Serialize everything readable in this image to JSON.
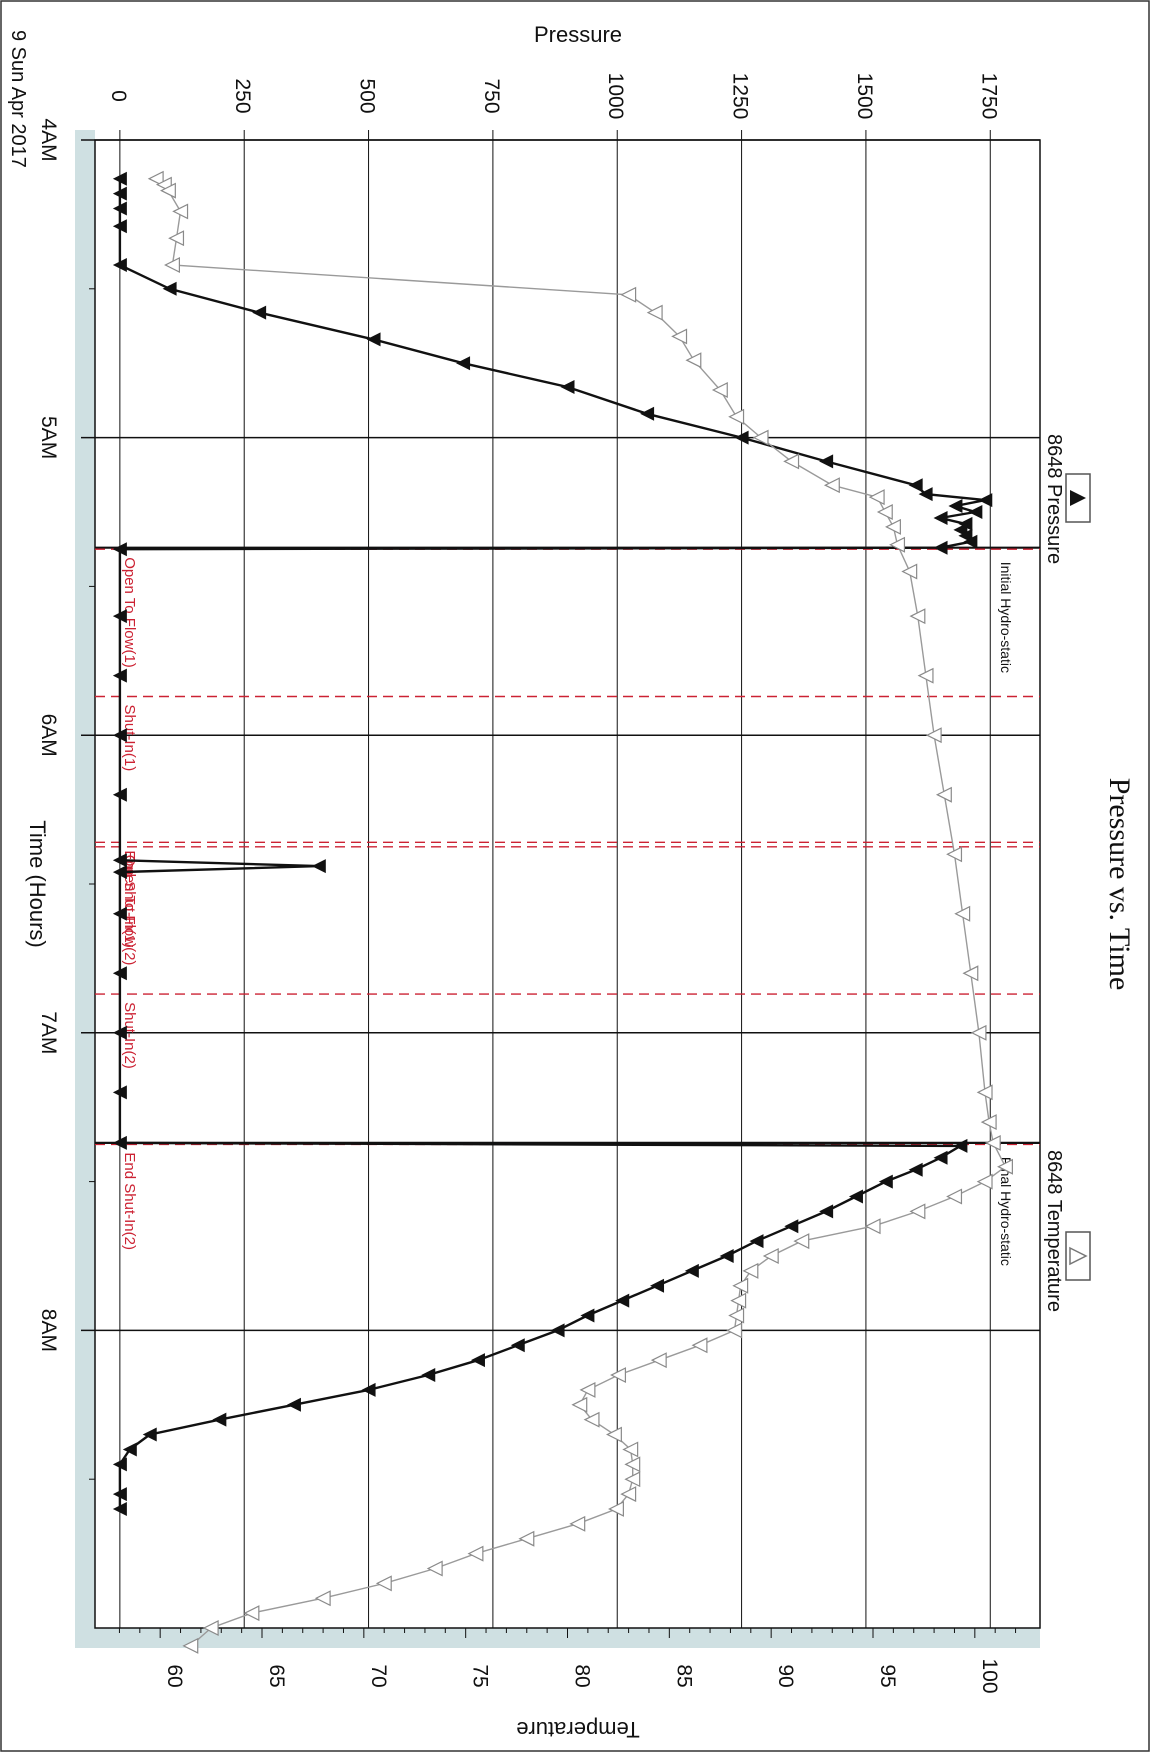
{
  "chart_data": {
    "type": "line",
    "orientation": "rotated-90-clockwise",
    "title": "Pressure vs. Time",
    "date_label": "9 Sun Apr 2017",
    "xlabel": "Time (Hours)",
    "ylabel_left": "Pressure",
    "ylabel_right": "Temperature",
    "x_range_hours": [
      4.0,
      9.0
    ],
    "x_ticks": [
      {
        "label": "4AM",
        "v": 4
      },
      {
        "label": "5AM",
        "v": 5
      },
      {
        "label": "6AM",
        "v": 6
      },
      {
        "label": "7AM",
        "v": 7
      },
      {
        "label": "8AM",
        "v": 8
      }
    ],
    "pressure_range": [
      -50,
      1850
    ],
    "pressure_ticks": [
      "0",
      "250",
      "500",
      "750",
      "1000",
      "1250",
      "1500",
      "1750"
    ],
    "temperature_range": [
      56.8,
      103.2
    ],
    "temperature_ticks": [
      "60",
      "65",
      "70",
      "75",
      "80",
      "85",
      "90",
      "95",
      "100"
    ],
    "grid": true,
    "legend": [
      {
        "name": "8648 Pressure",
        "marker": "filled-triangle",
        "color": "#111111"
      },
      {
        "name": "8648 Temperature",
        "marker": "open-triangle",
        "color": "#9a9a9a"
      }
    ],
    "events": [
      {
        "label": "Initial Hydro-static",
        "t": 5.37,
        "color": "#111111"
      },
      {
        "label": "Open To Flow(1)",
        "t": 5.375,
        "color": "#cc2233"
      },
      {
        "label": "Shut-In(1)",
        "t": 5.87,
        "color": "#cc2233"
      },
      {
        "label": "End Shut-In(1)",
        "t": 6.36,
        "color": "#cc2233"
      },
      {
        "label": "Open To Flow(2)",
        "t": 6.375,
        "color": "#cc2233"
      },
      {
        "label": "Shut-In(2)",
        "t": 6.87,
        "color": "#cc2233"
      },
      {
        "label": "End Shut-In(2)",
        "t": 7.375,
        "color": "#cc2233"
      },
      {
        "label": "Final Hydro-static",
        "t": 7.37,
        "color": "#111111"
      }
    ],
    "series": [
      {
        "name": "8648 Pressure",
        "unit": "Pressure",
        "points": [
          [
            4.13,
            0
          ],
          [
            4.18,
            0
          ],
          [
            4.23,
            0
          ],
          [
            4.29,
            0
          ],
          [
            4.42,
            0
          ],
          [
            4.5,
            100
          ],
          [
            4.58,
            280
          ],
          [
            4.67,
            510
          ],
          [
            4.75,
            690
          ],
          [
            4.83,
            900
          ],
          [
            4.92,
            1060
          ],
          [
            5.0,
            1250
          ],
          [
            5.08,
            1420
          ],
          [
            5.16,
            1600
          ],
          [
            5.19,
            1620
          ],
          [
            5.21,
            1740
          ],
          [
            5.23,
            1680
          ],
          [
            5.25,
            1720
          ],
          [
            5.27,
            1650
          ],
          [
            5.29,
            1700
          ],
          [
            5.31,
            1690
          ],
          [
            5.33,
            1700
          ],
          [
            5.35,
            1710
          ],
          [
            5.37,
            1650
          ],
          [
            5.375,
            0
          ],
          [
            5.6,
            0
          ],
          [
            5.8,
            0
          ],
          [
            6.0,
            0
          ],
          [
            6.2,
            0
          ],
          [
            6.42,
            0
          ],
          [
            6.44,
            400
          ],
          [
            6.46,
            0
          ],
          [
            6.6,
            0
          ],
          [
            6.8,
            0
          ],
          [
            7.0,
            0
          ],
          [
            7.2,
            0
          ],
          [
            7.37,
            0
          ],
          [
            7.38,
            1690
          ],
          [
            7.42,
            1650
          ],
          [
            7.46,
            1600
          ],
          [
            7.5,
            1540
          ],
          [
            7.55,
            1480
          ],
          [
            7.6,
            1420
          ],
          [
            7.65,
            1350
          ],
          [
            7.7,
            1280
          ],
          [
            7.75,
            1220
          ],
          [
            7.8,
            1150
          ],
          [
            7.85,
            1080
          ],
          [
            7.9,
            1010
          ],
          [
            7.95,
            940
          ],
          [
            8.0,
            880
          ],
          [
            8.05,
            800
          ],
          [
            8.1,
            720
          ],
          [
            8.15,
            620
          ],
          [
            8.2,
            500
          ],
          [
            8.25,
            350
          ],
          [
            8.3,
            200
          ],
          [
            8.35,
            60
          ],
          [
            8.4,
            20
          ],
          [
            8.45,
            0
          ],
          [
            8.55,
            0
          ],
          [
            8.6,
            0
          ]
        ]
      },
      {
        "name": "8648 Temperature",
        "unit": "Temperature",
        "points": [
          [
            4.13,
            59.8
          ],
          [
            4.15,
            60.2
          ],
          [
            4.17,
            60.4
          ],
          [
            4.24,
            61.0
          ],
          [
            4.33,
            60.8
          ],
          [
            4.42,
            60.6
          ],
          [
            4.52,
            83.0
          ],
          [
            4.58,
            84.3
          ],
          [
            4.66,
            85.5
          ],
          [
            4.74,
            86.2
          ],
          [
            4.84,
            87.5
          ],
          [
            4.93,
            88.3
          ],
          [
            5.0,
            89.5
          ],
          [
            5.08,
            91.0
          ],
          [
            5.16,
            93.0
          ],
          [
            5.2,
            95.2
          ],
          [
            5.25,
            95.6
          ],
          [
            5.3,
            96.0
          ],
          [
            5.36,
            96.2
          ],
          [
            5.45,
            96.8
          ],
          [
            5.6,
            97.2
          ],
          [
            5.8,
            97.6
          ],
          [
            6.0,
            98.0
          ],
          [
            6.2,
            98.5
          ],
          [
            6.4,
            99.0
          ],
          [
            6.6,
            99.4
          ],
          [
            6.8,
            99.8
          ],
          [
            7.0,
            100.2
          ],
          [
            7.2,
            100.5
          ],
          [
            7.3,
            100.7
          ],
          [
            7.37,
            100.9
          ],
          [
            7.45,
            101.5
          ],
          [
            7.5,
            100.5
          ],
          [
            7.55,
            99.0
          ],
          [
            7.6,
            97.2
          ],
          [
            7.65,
            95.0
          ],
          [
            7.7,
            91.5
          ],
          [
            7.75,
            90.0
          ],
          [
            7.8,
            89.0
          ],
          [
            7.85,
            88.5
          ],
          [
            7.9,
            88.4
          ],
          [
            7.95,
            88.3
          ],
          [
            8.0,
            88.2
          ],
          [
            8.05,
            86.5
          ],
          [
            8.1,
            84.5
          ],
          [
            8.15,
            82.5
          ],
          [
            8.2,
            81.0
          ],
          [
            8.25,
            80.6
          ],
          [
            8.3,
            81.2
          ],
          [
            8.35,
            82.3
          ],
          [
            8.4,
            83.1
          ],
          [
            8.45,
            83.2
          ],
          [
            8.5,
            83.2
          ],
          [
            8.55,
            83.0
          ],
          [
            8.6,
            82.4
          ],
          [
            8.65,
            80.5
          ],
          [
            8.7,
            78.0
          ],
          [
            8.75,
            75.5
          ],
          [
            8.8,
            73.5
          ],
          [
            8.85,
            71.0
          ],
          [
            8.9,
            68.0
          ],
          [
            8.95,
            64.5
          ],
          [
            9.0,
            62.5
          ],
          [
            9.06,
            61.5
          ]
        ]
      }
    ]
  }
}
